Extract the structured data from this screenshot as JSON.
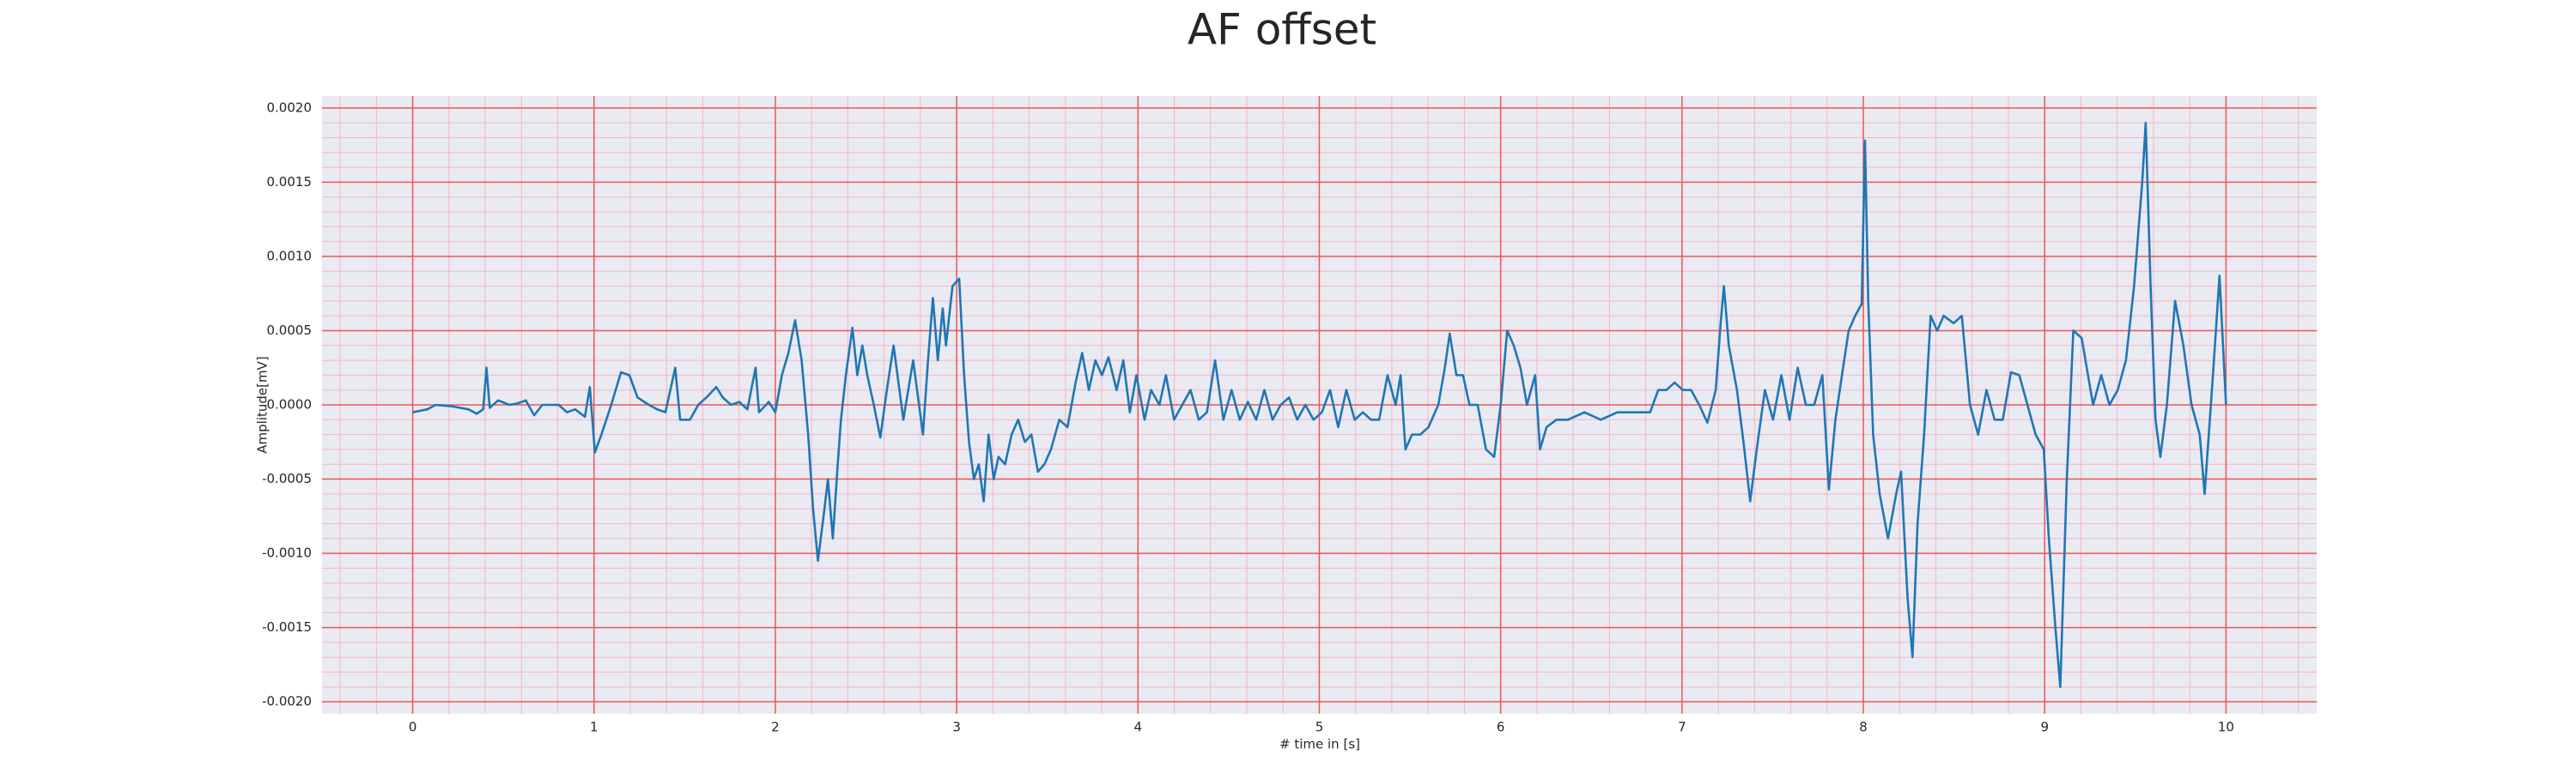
{
  "chart_data": {
    "type": "line",
    "title": "AF offset",
    "xlabel": "# time in [s]",
    "ylabel": "Amplitude[mV]",
    "grid": true,
    "minor_grid": true,
    "xlim": [
      -0.5,
      10.5
    ],
    "ylim": [
      -0.00208,
      0.00208
    ],
    "xticks": [
      0,
      1,
      2,
      3,
      4,
      5,
      6,
      7,
      8,
      9,
      10
    ],
    "yticks": [
      {
        "value": -0.002,
        "label": "-0.0020"
      },
      {
        "value": -0.0015,
        "label": "-0.0015"
      },
      {
        "value": -0.001,
        "label": "-0.0010"
      },
      {
        "value": -0.0005,
        "label": "-0.0005"
      },
      {
        "value": 0,
        "label": "0.0000"
      },
      {
        "value": 0.0005,
        "label": "0.0005"
      },
      {
        "value": 0.001,
        "label": "0.0010"
      },
      {
        "value": 0.0015,
        "label": "0.0015"
      },
      {
        "value": 0.002,
        "label": "0.0020"
      }
    ],
    "x": [
      0,
      0.081,
      0.127,
      0.217,
      0.308,
      0.353,
      0.389,
      0.407,
      0.425,
      0.471,
      0.534,
      0.579,
      0.624,
      0.67,
      0.715,
      0.76,
      0.805,
      0.851,
      0.896,
      0.95,
      0.977,
      1.005,
      1.041,
      1.095,
      1.149,
      1.195,
      1.24,
      1.303,
      1.348,
      1.394,
      1.448,
      1.475,
      1.529,
      1.575,
      1.62,
      1.674,
      1.71,
      1.756,
      1.801,
      1.846,
      1.891,
      1.91,
      1.964,
      2.0,
      2.036,
      2.072,
      2.109,
      2.145,
      2.181,
      2.208,
      2.235,
      2.271,
      2.29,
      2.317,
      2.344,
      2.362,
      2.389,
      2.425,
      2.452,
      2.48,
      2.507,
      2.543,
      2.579,
      2.615,
      2.652,
      2.679,
      2.706,
      2.733,
      2.76,
      2.787,
      2.814,
      2.842,
      2.869,
      2.896,
      2.923,
      2.941,
      2.977,
      3.014,
      3.041,
      3.068,
      3.095,
      3.122,
      3.149,
      3.176,
      3.204,
      3.231,
      3.267,
      3.303,
      3.339,
      3.376,
      3.412,
      3.448,
      3.484,
      3.52,
      3.566,
      3.611,
      3.656,
      3.692,
      3.729,
      3.765,
      3.801,
      3.837,
      3.882,
      3.919,
      3.955,
      3.991,
      4.036,
      4.072,
      4.118,
      4.154,
      4.199,
      4.244,
      4.29,
      4.335,
      4.38,
      4.425,
      4.471,
      4.516,
      4.561,
      4.606,
      4.652,
      4.697,
      4.742,
      4.787,
      4.833,
      4.878,
      4.923,
      4.968,
      5.014,
      5.059,
      5.104,
      5.149,
      5.195,
      5.24,
      5.285,
      5.33,
      5.376,
      5.421,
      5.448,
      5.475,
      5.511,
      5.557,
      5.602,
      5.656,
      5.692,
      5.719,
      5.756,
      5.792,
      5.828,
      5.873,
      5.919,
      5.964,
      6.0,
      6.036,
      6.072,
      6.109,
      6.145,
      6.19,
      6.217,
      6.253,
      6.308,
      6.371,
      6.462,
      6.552,
      6.643,
      6.733,
      6.824,
      6.869,
      6.914,
      6.959,
      7.005,
      7.05,
      7.095,
      7.14,
      7.186,
      7.213,
      7.231,
      7.258,
      7.303,
      7.339,
      7.376,
      7.412,
      7.457,
      7.502,
      7.548,
      7.593,
      7.638,
      7.683,
      7.729,
      7.774,
      7.81,
      7.846,
      7.882,
      7.919,
      7.955,
      7.991,
      8.009,
      8.027,
      8.054,
      8.09,
      8.136,
      8.181,
      8.208,
      8.244,
      8.271,
      8.299,
      8.335,
      8.371,
      8.407,
      8.443,
      8.498,
      8.543,
      8.588,
      8.633,
      8.679,
      8.724,
      8.769,
      8.814,
      8.86,
      8.905,
      8.95,
      8.995,
      9.023,
      9.059,
      9.086,
      9.122,
      9.158,
      9.204,
      9.267,
      9.312,
      9.357,
      9.403,
      9.448,
      9.493,
      9.538,
      9.557,
      9.584,
      9.611,
      9.638,
      9.674,
      9.719,
      9.765,
      9.81,
      9.855,
      9.882,
      9.928,
      9.964,
      10.0
    ],
    "series": [
      {
        "name": "AF offset",
        "color": "#1f77b4",
        "values": [
          -5e-05,
          -3e-05,
          0.0,
          -1e-05,
          -3e-05,
          -6e-05,
          -3e-05,
          0.00025,
          -2e-05,
          3e-05,
          0.0,
          1e-05,
          3e-05,
          -7e-05,
          0.0,
          0.0,
          0.0,
          -5e-05,
          -3e-05,
          -8e-05,
          0.00012,
          -0.00032,
          -0.0002,
          0.0,
          0.00022,
          0.0002,
          5e-05,
          0.0,
          -3e-05,
          -5e-05,
          0.00025,
          -0.0001,
          -0.0001,
          0.0,
          5e-05,
          0.00012,
          5e-05,
          0.0,
          2e-05,
          -3e-05,
          0.00025,
          -5e-05,
          2e-05,
          -5e-05,
          0.0002,
          0.00035,
          0.00057,
          0.0003,
          -0.0002,
          -0.0007,
          -0.00105,
          -0.0007,
          -0.0005,
          -0.0009,
          -0.0004,
          -0.0001,
          0.0002,
          0.00052,
          0.0002,
          0.0004,
          0.0002,
          0.0,
          -0.00022,
          0.0001,
          0.0004,
          0.00015,
          -0.0001,
          0.0001,
          0.0003,
          5e-05,
          -0.0002,
          0.0003,
          0.00072,
          0.0003,
          0.00065,
          0.0004,
          0.0008,
          0.00085,
          0.0002,
          -0.00025,
          -0.0005,
          -0.0004,
          -0.00065,
          -0.0002,
          -0.0005,
          -0.00035,
          -0.0004,
          -0.0002,
          -0.0001,
          -0.00025,
          -0.0002,
          -0.00045,
          -0.0004,
          -0.0003,
          -0.0001,
          -0.00015,
          0.00015,
          0.00035,
          0.0001,
          0.0003,
          0.0002,
          0.00032,
          0.0001,
          0.0003,
          -5e-05,
          0.0002,
          -0.0001,
          0.0001,
          0.0,
          0.0002,
          -0.0001,
          0.0,
          0.0001,
          -0.0001,
          -5e-05,
          0.0003,
          -0.0001,
          0.0001,
          -0.0001,
          2e-05,
          -0.0001,
          0.0001,
          -0.0001,
          0.0,
          5e-05,
          -0.0001,
          0.0,
          -0.0001,
          -5e-05,
          0.0001,
          -0.00015,
          0.0001,
          -0.0001,
          -5e-05,
          -0.0001,
          -0.0001,
          0.0002,
          0.0,
          0.0002,
          -0.0003,
          -0.0002,
          -0.0002,
          -0.00015,
          0.0,
          0.00025,
          0.00048,
          0.0002,
          0.0002,
          0.0,
          0.0,
          -0.0003,
          -0.00035,
          0.0,
          0.0005,
          0.0004,
          0.00025,
          0.0,
          0.0002,
          -0.0003,
          -0.00015,
          -0.0001,
          -0.0001,
          -5e-05,
          -0.0001,
          -5e-05,
          -5e-05,
          -5e-05,
          0.0001,
          0.0001,
          0.00015,
          0.0001,
          0.0001,
          0.0,
          -0.00012,
          0.0001,
          0.00055,
          0.0008,
          0.0004,
          0.0001,
          -0.00025,
          -0.00065,
          -0.0003,
          0.0001,
          -0.0001,
          0.0002,
          -0.0001,
          0.00025,
          0.0,
          0.0,
          0.0002,
          -0.00057,
          -0.0001,
          0.0002,
          0.0005,
          0.0006,
          0.00068,
          0.00178,
          0.0007,
          -0.0002,
          -0.0006,
          -0.0009,
          -0.0006,
          -0.00045,
          -0.0013,
          -0.0017,
          -0.0008,
          -0.0002,
          0.0006,
          0.0005,
          0.0006,
          0.00055,
          0.0006,
          0.0,
          -0.0002,
          0.0001,
          -0.0001,
          -0.0001,
          0.00022,
          0.0002,
          0.0,
          -0.0002,
          -0.0003,
          -0.0009,
          -0.0015,
          -0.0019,
          -0.0005,
          0.0005,
          0.00045,
          0.0,
          0.0002,
          0.0,
          0.0001,
          0.0003,
          0.0008,
          0.0015,
          0.0019,
          0.0008,
          -0.0001,
          -0.00035,
          0.0,
          0.0007,
          0.0004,
          0.0,
          -0.0002,
          -0.0006,
          0.0002,
          0.00087,
          0.0
        ]
      }
    ]
  }
}
